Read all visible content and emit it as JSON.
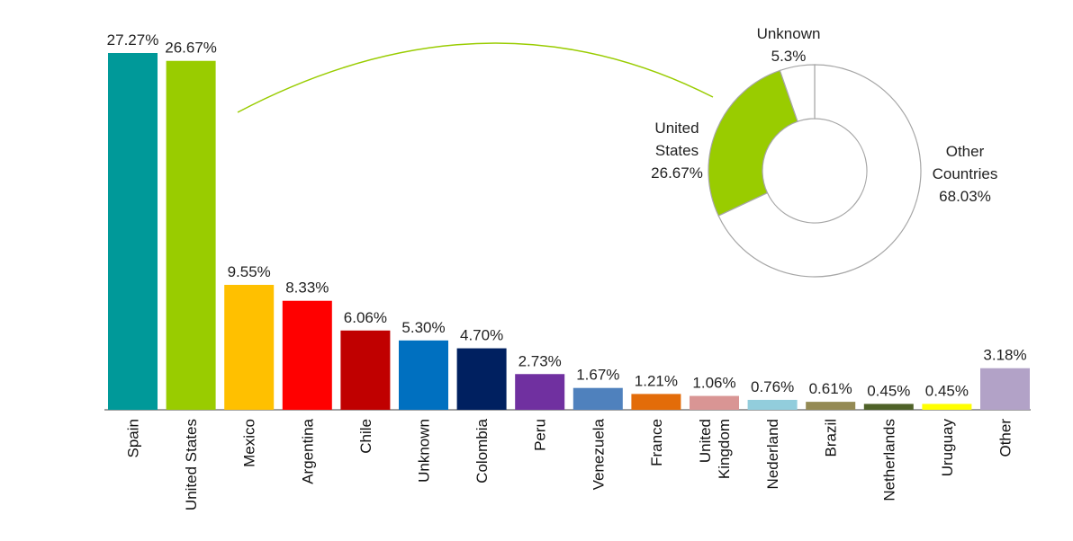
{
  "chart_data": [
    {
      "type": "bar",
      "categories": [
        "Spain",
        "United States",
        "Mexico",
        "Argentina",
        "Chile",
        "Unknown",
        "Colombia",
        "Peru",
        "Venezuela",
        "France",
        "United Kingdom",
        "Nederland",
        "Brazil",
        "Netherlands",
        "Uruguay",
        "Other"
      ],
      "category_lines": [
        [
          "Spain"
        ],
        [
          "United States"
        ],
        [
          "Mexico"
        ],
        [
          "Argentina"
        ],
        [
          "Chile"
        ],
        [
          "Unknown"
        ],
        [
          "Colombia"
        ],
        [
          "Peru"
        ],
        [
          "Venezuela"
        ],
        [
          "France"
        ],
        [
          "United",
          "Kingdom"
        ],
        [
          "Nederland"
        ],
        [
          "Brazil"
        ],
        [
          "Netherlands"
        ],
        [
          "Uruguay"
        ],
        [
          "Other"
        ]
      ],
      "values": [
        27.27,
        26.67,
        9.55,
        8.33,
        6.06,
        5.3,
        4.7,
        2.73,
        1.67,
        1.21,
        1.06,
        0.76,
        0.61,
        0.45,
        0.45,
        3.18
      ],
      "value_labels": [
        "27.27%",
        "26.67%",
        "9.55%",
        "8.33%",
        "6.06%",
        "5.30%",
        "4.70%",
        "2.73%",
        "1.67%",
        "1.21%",
        "1.06%",
        "0.76%",
        "0.61%",
        "0.45%",
        "0.45%",
        "3.18%"
      ],
      "colors": [
        "#009999",
        "#99cc00",
        "#ffc000",
        "#ff0000",
        "#c00000",
        "#0070c0",
        "#002060",
        "#7030a0",
        "#4f81bd",
        "#e36c09",
        "#d99594",
        "#92cddc",
        "#948a54",
        "#4f6228",
        "#ffff00",
        "#b2a2c7"
      ],
      "ylim": [
        0,
        27.27
      ],
      "title": "",
      "xlabel": "",
      "ylabel": "",
      "grid": false,
      "legend": "none"
    },
    {
      "type": "pie",
      "style": "donut",
      "slices": [
        {
          "name": "Other Countries",
          "value": 68.03,
          "color": "#ffffff",
          "label_lines": [
            "Other",
            "Countries",
            "68.03%"
          ]
        },
        {
          "name": "United States",
          "value": 26.67,
          "color": "#99cc00",
          "label_lines": [
            "United",
            "States",
            "26.67%"
          ]
        },
        {
          "name": "Unknown",
          "value": 5.3,
          "color": "#ffffff",
          "label_lines": [
            "Unknown",
            "5.3%"
          ]
        }
      ],
      "title": "",
      "legend": "none"
    }
  ],
  "connector": {
    "from": "United States bar",
    "to": "United States slice",
    "color": "#99cc00"
  }
}
